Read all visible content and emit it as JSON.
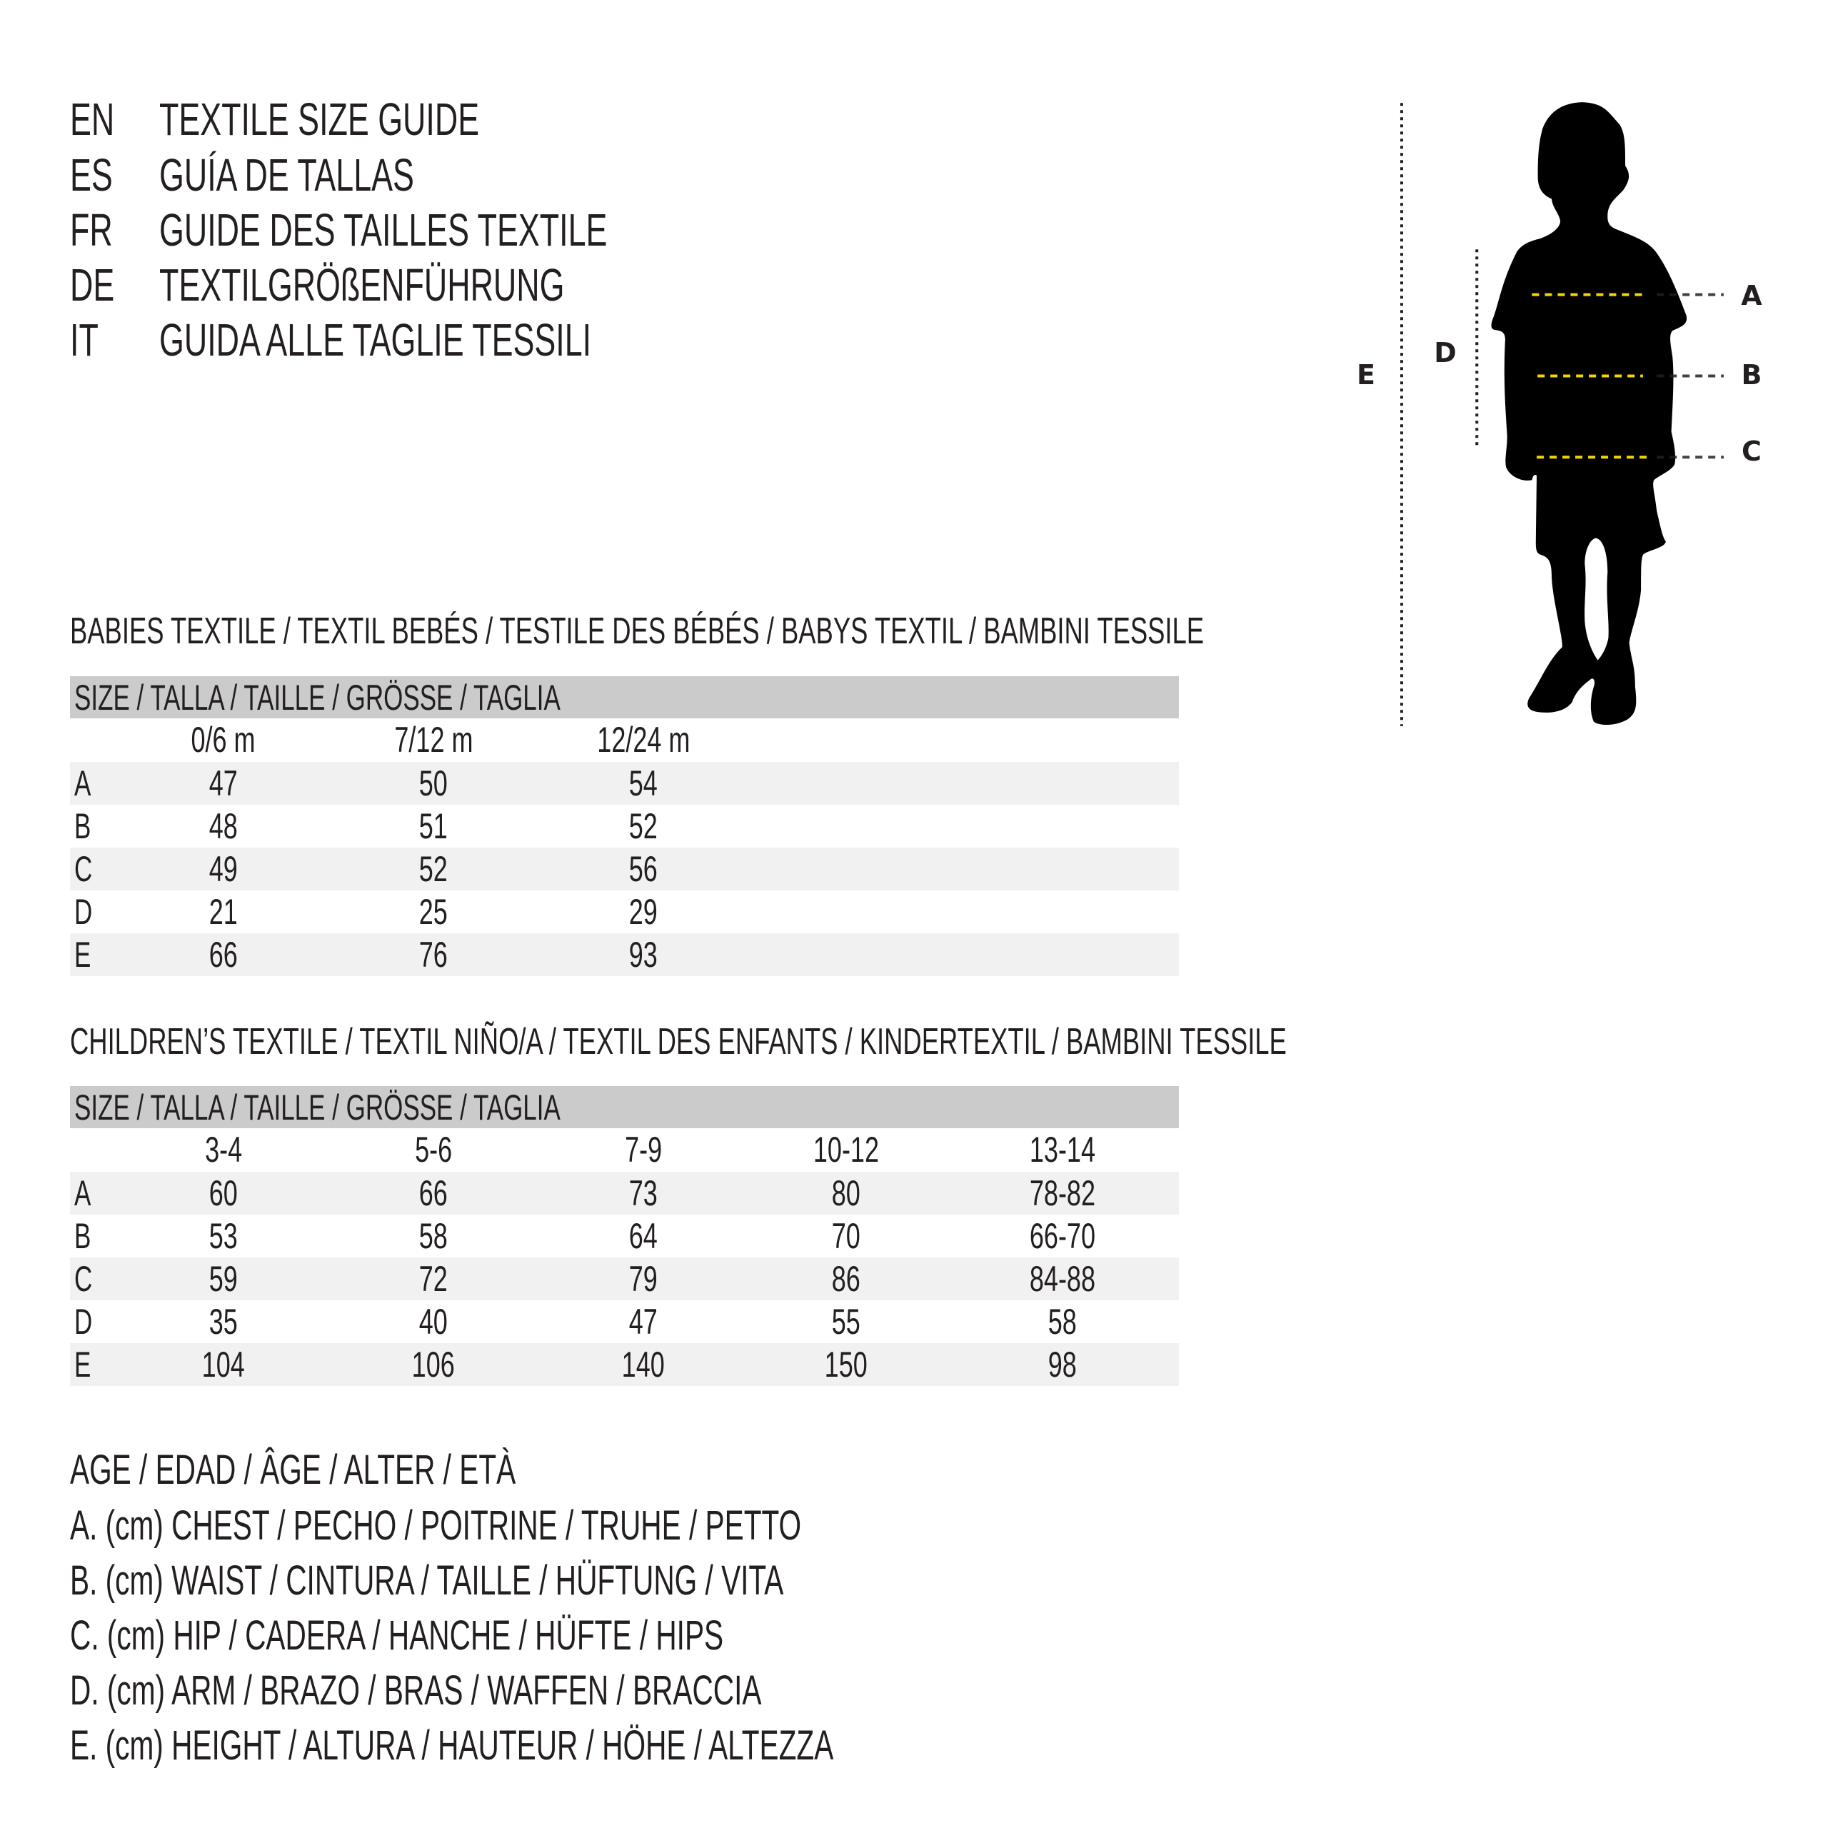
{
  "header": {
    "lines": [
      {
        "code": "EN",
        "title": "TEXTILE SIZE GUIDE"
      },
      {
        "code": "ES",
        "title": "GUÍA DE TALLAS"
      },
      {
        "code": "FR",
        "title": "GUIDE DES TAILLES TEXTILE"
      },
      {
        "code": "DE",
        "title": "TEXTILGRÖßENFÜHRUNG"
      },
      {
        "code": "IT",
        "title": "GUIDA ALLE TAGLIE TESSILI"
      }
    ]
  },
  "babies": {
    "heading": "BABIES TEXTILE / TEXTIL BEBÉS / TESTILE DES BÉBÉS / BABYS TEXTIL / BAMBINI TESSILE",
    "size_label": "SIZE / TALLA / TAILLE / GRÖSSE / TAGLIA",
    "columns": [
      "0/6 m",
      "7/12 m",
      "12/24 m"
    ],
    "rows": [
      {
        "label": "A",
        "values": [
          "47",
          "50",
          "54"
        ]
      },
      {
        "label": "B",
        "values": [
          "48",
          "51",
          "52"
        ]
      },
      {
        "label": "C",
        "values": [
          "49",
          "52",
          "56"
        ]
      },
      {
        "label": "D",
        "values": [
          "21",
          "25",
          "29"
        ]
      },
      {
        "label": "E",
        "values": [
          "66",
          "76",
          "93"
        ]
      }
    ]
  },
  "children": {
    "heading": "CHILDREN’S TEXTILE / TEXTIL NIÑO/A / TEXTIL DES ENFANTS / KINDERTEXTIL / BAMBINI TESSILE",
    "size_label": "SIZE / TALLA / TAILLE / GRÖSSE / TAGLIA",
    "columns": [
      "3-4",
      "5-6",
      "7-9",
      "10-12",
      "13-14"
    ],
    "rows": [
      {
        "label": "A",
        "values": [
          "60",
          "66",
          "73",
          "80",
          "78-82"
        ]
      },
      {
        "label": "B",
        "values": [
          "53",
          "58",
          "64",
          "70",
          "66-70"
        ]
      },
      {
        "label": "C",
        "values": [
          "59",
          "72",
          "79",
          "86",
          "84-88"
        ]
      },
      {
        "label": "D",
        "values": [
          "35",
          "40",
          "47",
          "55",
          "58"
        ]
      },
      {
        "label": "E",
        "values": [
          "104",
          "106",
          "140",
          "150",
          "98"
        ]
      }
    ]
  },
  "legend": [
    "AGE / EDAD / ÂGE / ALTER / ETÀ",
    "A. (cm) CHEST / PECHO / POITRINE / TRUHE / PETTO",
    "B. (cm) WAIST / CINTURA / TAILLE / HÜFTUNG / VITA",
    "C. (cm) HIP / CADERA / HANCHE / HÜFTE / HIPS",
    "D. (cm) ARM / BRAZO / BRAS / WAFFEN / BRACCIA",
    "E. (cm) HEIGHT / ALTURA / HAUTEUR / HÖHE / ALTEZZA"
  ],
  "figure": {
    "labels": {
      "A": "A",
      "B": "B",
      "C": "C",
      "D": "D",
      "E": "E"
    },
    "icon": "child-silhouette-icon"
  },
  "colors": {
    "text": "#231f20",
    "band": "#cbcbcb",
    "row_shade": "#f1f1f1",
    "measure_line": "#f2d600",
    "guide_line": "#231f20"
  }
}
